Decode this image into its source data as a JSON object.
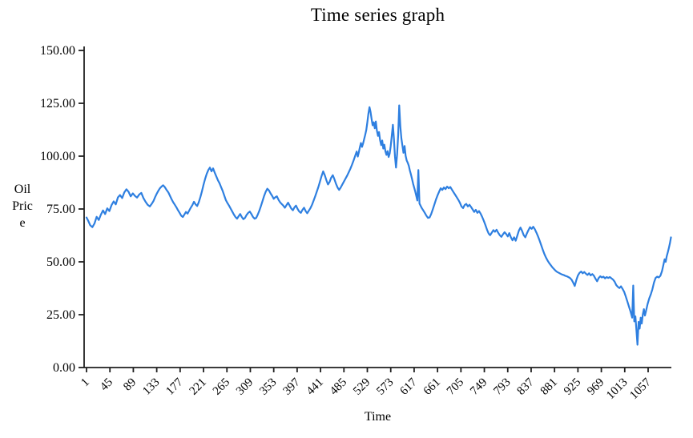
{
  "page": {
    "background": "#ffffff"
  },
  "chart": {
    "title": "Time series graph",
    "x_axis_title": "Time",
    "y_axis_label_lines": [
      "Oil",
      "Pric",
      "e"
    ]
  },
  "chart_data": {
    "type": "line",
    "title": "Time series graph",
    "xlabel": "Time",
    "ylabel": "Oil Price",
    "legend": [],
    "grid": false,
    "line_color": "#2E7FE0",
    "axis_color": "#1f1f1f",
    "xlim": [
      1,
      1100
    ],
    "ylim": [
      0,
      150
    ],
    "x_ticks": [
      1,
      45,
      89,
      133,
      177,
      221,
      265,
      309,
      353,
      397,
      441,
      485,
      529,
      573,
      617,
      661,
      705,
      749,
      793,
      837,
      881,
      925,
      969,
      1013,
      1057
    ],
    "y_ticks": [
      0,
      25,
      50,
      75,
      100,
      125,
      150
    ],
    "y_tick_decimals": 2,
    "points": [
      [
        1,
        71
      ],
      [
        4,
        69.5
      ],
      [
        8,
        67.3
      ],
      [
        12,
        66.4
      ],
      [
        16,
        68.2
      ],
      [
        20,
        71.3
      ],
      [
        24,
        69.8
      ],
      [
        28,
        72.3
      ],
      [
        32,
        74.3
      ],
      [
        36,
        72.6
      ],
      [
        40,
        75.3
      ],
      [
        44,
        74
      ],
      [
        48,
        76.8
      ],
      [
        52,
        78.6
      ],
      [
        56,
        77.2
      ],
      [
        60,
        80.5
      ],
      [
        64,
        81.6
      ],
      [
        68,
        80.2
      ],
      [
        72,
        82.8
      ],
      [
        76,
        84.3
      ],
      [
        80,
        83.2
      ],
      [
        84,
        81
      ],
      [
        88,
        82.4
      ],
      [
        92,
        81.2
      ],
      [
        96,
        80.4
      ],
      [
        100,
        81.8
      ],
      [
        104,
        82.6
      ],
      [
        108,
        80.2
      ],
      [
        112,
        78.4
      ],
      [
        116,
        77
      ],
      [
        120,
        76.2
      ],
      [
        124,
        77.6
      ],
      [
        127,
        78.8
      ],
      [
        130,
        80.6
      ],
      [
        133,
        82.2
      ],
      [
        136,
        83.6
      ],
      [
        139,
        84.8
      ],
      [
        142,
        85.6
      ],
      [
        145,
        86.2
      ],
      [
        148,
        85.4
      ],
      [
        151,
        84.2
      ],
      [
        155,
        82.8
      ],
      [
        158,
        81.2
      ],
      [
        161,
        79.6
      ],
      [
        164,
        78.2
      ],
      [
        167,
        77
      ],
      [
        170,
        75.8
      ],
      [
        173,
        74.4
      ],
      [
        176,
        73.2
      ],
      [
        179,
        71.8
      ],
      [
        182,
        71.2
      ],
      [
        185,
        72.4
      ],
      [
        188,
        73.6
      ],
      [
        191,
        72.8
      ],
      [
        194,
        74.2
      ],
      [
        197,
        75.6
      ],
      [
        200,
        76.8
      ],
      [
        203,
        78.4
      ],
      [
        206,
        77.2
      ],
      [
        209,
        76.4
      ],
      [
        212,
        78.2
      ],
      [
        215,
        80.6
      ],
      [
        218,
        83.4
      ],
      [
        221,
        86.4
      ],
      [
        224,
        89.2
      ],
      [
        227,
        91.6
      ],
      [
        230,
        93.4
      ],
      [
        233,
        94.6
      ],
      [
        236,
        92.8
      ],
      [
        239,
        94.2
      ],
      [
        242,
        92.2
      ],
      [
        245,
        90.4
      ],
      [
        248,
        88.6
      ],
      [
        251,
        87.2
      ],
      [
        254,
        85.4
      ],
      [
        257,
        83.6
      ],
      [
        260,
        81.4
      ],
      [
        263,
        79.2
      ],
      [
        266,
        77.8
      ],
      [
        269,
        76.6
      ],
      [
        272,
        75.2
      ],
      [
        275,
        73.8
      ],
      [
        278,
        72.4
      ],
      [
        281,
        71.2
      ],
      [
        284,
        70.4
      ],
      [
        287,
        71.6
      ],
      [
        290,
        72.6
      ],
      [
        293,
        71.2
      ],
      [
        296,
        70.2
      ],
      [
        299,
        70.8
      ],
      [
        302,
        72.2
      ],
      [
        305,
        73.2
      ],
      [
        308,
        73.8
      ],
      [
        311,
        72.6
      ],
      [
        314,
        71.2
      ],
      [
        317,
        70.4
      ],
      [
        320,
        70.8
      ],
      [
        323,
        72.4
      ],
      [
        326,
        74.2
      ],
      [
        329,
        76.4
      ],
      [
        332,
        78.8
      ],
      [
        335,
        81.2
      ],
      [
        338,
        83.2
      ],
      [
        341,
        84.6
      ],
      [
        344,
        83.8
      ],
      [
        347,
        82.4
      ],
      [
        350,
        81.2
      ],
      [
        353,
        79.8
      ],
      [
        356,
        80.6
      ],
      [
        359,
        81
      ],
      [
        362,
        79.4
      ],
      [
        365,
        78.2
      ],
      [
        368,
        77.4
      ],
      [
        371,
        76.6
      ],
      [
        374,
        75.6
      ],
      [
        377,
        76.8
      ],
      [
        380,
        78
      ],
      [
        383,
        76.6
      ],
      [
        386,
        75.2
      ],
      [
        389,
        74.4
      ],
      [
        392,
        75.8
      ],
      [
        395,
        76.6
      ],
      [
        398,
        75
      ],
      [
        401,
        73.8
      ],
      [
        404,
        73.2
      ],
      [
        407,
        74.6
      ],
      [
        410,
        75.6
      ],
      [
        413,
        74
      ],
      [
        416,
        73
      ],
      [
        419,
        74.2
      ],
      [
        422,
        75.4
      ],
      [
        425,
        77
      ],
      [
        428,
        79
      ],
      [
        431,
        81
      ],
      [
        434,
        83.2
      ],
      [
        437,
        85.4
      ],
      [
        440,
        88
      ],
      [
        443,
        90.6
      ],
      [
        446,
        92.8
      ],
      [
        449,
        91
      ],
      [
        452,
        88.6
      ],
      [
        455,
        86.6
      ],
      [
        458,
        87.8
      ],
      [
        461,
        89.8
      ],
      [
        464,
        91
      ],
      [
        467,
        89.2
      ],
      [
        470,
        87
      ],
      [
        473,
        85.2
      ],
      [
        476,
        84
      ],
      [
        479,
        85.2
      ],
      [
        482,
        86.6
      ],
      [
        485,
        88
      ],
      [
        488,
        89.4
      ],
      [
        491,
        90.8
      ],
      [
        494,
        92.4
      ],
      [
        497,
        94
      ],
      [
        500,
        95.8
      ],
      [
        503,
        97.8
      ],
      [
        506,
        100
      ],
      [
        509,
        102.2
      ],
      [
        511,
        99.8
      ],
      [
        513,
        101.8
      ],
      [
        515,
        104.2
      ],
      [
        517,
        106.2
      ],
      [
        519,
        104.4
      ],
      [
        521,
        106
      ],
      [
        523,
        108
      ],
      [
        525,
        110
      ],
      [
        527,
        112.4
      ],
      [
        529,
        116
      ],
      [
        531,
        120
      ],
      [
        533,
        123.2
      ],
      [
        535,
        121
      ],
      [
        537,
        117.6
      ],
      [
        539,
        114.6
      ],
      [
        541,
        116
      ],
      [
        543,
        113.2
      ],
      [
        545,
        116.4
      ],
      [
        547,
        112.2
      ],
      [
        549,
        109.6
      ],
      [
        551,
        111.4
      ],
      [
        553,
        107.6
      ],
      [
        555,
        105.2
      ],
      [
        557,
        107.4
      ],
      [
        559,
        103.6
      ],
      [
        561,
        105.4
      ],
      [
        563,
        102.2
      ],
      [
        565,
        100.6
      ],
      [
        567,
        102.4
      ],
      [
        569,
        99.6
      ],
      [
        571,
        101.2
      ],
      [
        573,
        104.8
      ],
      [
        575,
        109.6
      ],
      [
        577,
        114.8
      ],
      [
        579,
        108.2
      ],
      [
        581,
        99.8
      ],
      [
        583,
        94.6
      ],
      [
        585,
        101
      ],
      [
        587,
        110
      ],
      [
        589,
        124
      ],
      [
        591,
        114
      ],
      [
        593,
        108.4
      ],
      [
        595,
        105
      ],
      [
        597,
        101.6
      ],
      [
        599,
        104.8
      ],
      [
        601,
        100.2
      ],
      [
        603,
        98
      ],
      [
        605,
        96.8
      ],
      [
        607,
        95.4
      ],
      [
        609,
        93.2
      ],
      [
        611,
        91.4
      ],
      [
        613,
        89.2
      ],
      [
        615,
        87
      ],
      [
        617,
        85.2
      ],
      [
        619,
        83.4
      ],
      [
        621,
        81.2
      ],
      [
        623,
        79
      ],
      [
        625,
        93.4
      ],
      [
        627,
        77.6
      ],
      [
        629,
        76.6
      ],
      [
        631,
        75.6
      ],
      [
        634,
        74.4
      ],
      [
        637,
        73.2
      ],
      [
        640,
        71.8
      ],
      [
        643,
        70.8
      ],
      [
        646,
        71
      ],
      [
        649,
        72.6
      ],
      [
        652,
        74.8
      ],
      [
        655,
        77
      ],
      [
        658,
        79.4
      ],
      [
        661,
        81.4
      ],
      [
        664,
        83.2
      ],
      [
        667,
        84.8
      ],
      [
        670,
        84
      ],
      [
        673,
        85.2
      ],
      [
        676,
        84.4
      ],
      [
        679,
        85.6
      ],
      [
        682,
        84.8
      ],
      [
        685,
        85.4
      ],
      [
        688,
        84.2
      ],
      [
        691,
        83
      ],
      [
        694,
        81.8
      ],
      [
        697,
        80.6
      ],
      [
        700,
        79.4
      ],
      [
        703,
        78
      ],
      [
        706,
        76.2
      ],
      [
        709,
        75.4
      ],
      [
        712,
        76.9
      ],
      [
        715,
        77.4
      ],
      [
        718,
        76.2
      ],
      [
        721,
        77
      ],
      [
        724,
        76
      ],
      [
        727,
        74.8
      ],
      [
        730,
        73.6
      ],
      [
        733,
        74.6
      ],
      [
        736,
        73.2
      ],
      [
        739,
        74
      ],
      [
        742,
        72.8
      ],
      [
        745,
        71.2
      ],
      [
        748,
        69.4
      ],
      [
        751,
        67.4
      ],
      [
        754,
        65.2
      ],
      [
        757,
        63.4
      ],
      [
        760,
        62.6
      ],
      [
        763,
        63.8
      ],
      [
        766,
        65
      ],
      [
        769,
        64.2
      ],
      [
        772,
        65.2
      ],
      [
        775,
        63.8
      ],
      [
        778,
        62.6
      ],
      [
        781,
        61.8
      ],
      [
        784,
        63
      ],
      [
        787,
        64
      ],
      [
        790,
        63.2
      ],
      [
        793,
        62
      ],
      [
        796,
        63.6
      ],
      [
        799,
        61.6
      ],
      [
        802,
        60.2
      ],
      [
        805,
        61.6
      ],
      [
        808,
        60
      ],
      [
        811,
        62.4
      ],
      [
        814,
        64.8
      ],
      [
        817,
        66.2
      ],
      [
        820,
        64.6
      ],
      [
        823,
        62.6
      ],
      [
        826,
        61.6
      ],
      [
        829,
        63.4
      ],
      [
        832,
        65
      ],
      [
        835,
        66.4
      ],
      [
        838,
        65.6
      ],
      [
        841,
        66.6
      ],
      [
        844,
        65.4
      ],
      [
        847,
        63.8
      ],
      [
        850,
        62
      ],
      [
        853,
        60
      ],
      [
        856,
        57.8
      ],
      [
        859,
        55.6
      ],
      [
        862,
        53.6
      ],
      [
        865,
        52
      ],
      [
        868,
        50.6
      ],
      [
        871,
        49.4
      ],
      [
        874,
        48.4
      ],
      [
        877,
        47.4
      ],
      [
        880,
        46.6
      ],
      [
        883,
        45.8
      ],
      [
        886,
        45.2
      ],
      [
        889,
        44.8
      ],
      [
        892,
        44.4
      ],
      [
        895,
        44
      ],
      [
        898,
        43.8
      ],
      [
        901,
        43.4
      ],
      [
        904,
        43.2
      ],
      [
        907,
        42.8
      ],
      [
        910,
        42.4
      ],
      [
        913,
        41.6
      ],
      [
        916,
        40.2
      ],
      [
        919,
        38.6
      ],
      [
        922,
        41.4
      ],
      [
        925,
        43.6
      ],
      [
        928,
        44.8
      ],
      [
        931,
        45.4
      ],
      [
        934,
        44.6
      ],
      [
        937,
        45.2
      ],
      [
        940,
        44.4
      ],
      [
        943,
        43.8
      ],
      [
        946,
        44.6
      ],
      [
        949,
        43.6
      ],
      [
        952,
        44.2
      ],
      [
        955,
        43.4
      ],
      [
        958,
        42
      ],
      [
        961,
        40.8
      ],
      [
        964,
        42.4
      ],
      [
        967,
        43.2
      ],
      [
        970,
        42.6
      ],
      [
        973,
        43
      ],
      [
        976,
        42.2
      ],
      [
        979,
        42.8
      ],
      [
        982,
        42.4
      ],
      [
        985,
        42.8
      ],
      [
        988,
        42.2
      ],
      [
        991,
        41.6
      ],
      [
        994,
        40.6
      ],
      [
        997,
        39
      ],
      [
        1000,
        38.2
      ],
      [
        1003,
        37.6
      ],
      [
        1006,
        38.4
      ],
      [
        1009,
        37.2
      ],
      [
        1012,
        35.8
      ],
      [
        1015,
        33.6
      ],
      [
        1018,
        31.2
      ],
      [
        1021,
        28.8
      ],
      [
        1024,
        26.4
      ],
      [
        1027,
        23.6
      ],
      [
        1029,
        38.8
      ],
      [
        1031,
        21.8
      ],
      [
        1033,
        24.2
      ],
      [
        1035,
        17.6
      ],
      [
        1037,
        10.8
      ],
      [
        1039,
        21.6
      ],
      [
        1041,
        18.4
      ],
      [
        1043,
        23.6
      ],
      [
        1045,
        20.8
      ],
      [
        1047,
        25.2
      ],
      [
        1049,
        27.6
      ],
      [
        1051,
        24.6
      ],
      [
        1053,
        26.6
      ],
      [
        1056,
        30
      ],
      [
        1059,
        32.6
      ],
      [
        1062,
        34.6
      ],
      [
        1065,
        37
      ],
      [
        1068,
        40.2
      ],
      [
        1071,
        42.4
      ],
      [
        1074,
        43
      ],
      [
        1077,
        42.6
      ],
      [
        1080,
        43.4
      ],
      [
        1083,
        45.6
      ],
      [
        1086,
        49
      ],
      [
        1088,
        51.2
      ],
      [
        1090,
        50
      ],
      [
        1092,
        52.6
      ],
      [
        1094,
        54.6
      ],
      [
        1096,
        56.6
      ],
      [
        1098,
        58.8
      ],
      [
        1100,
        61.6
      ]
    ]
  }
}
